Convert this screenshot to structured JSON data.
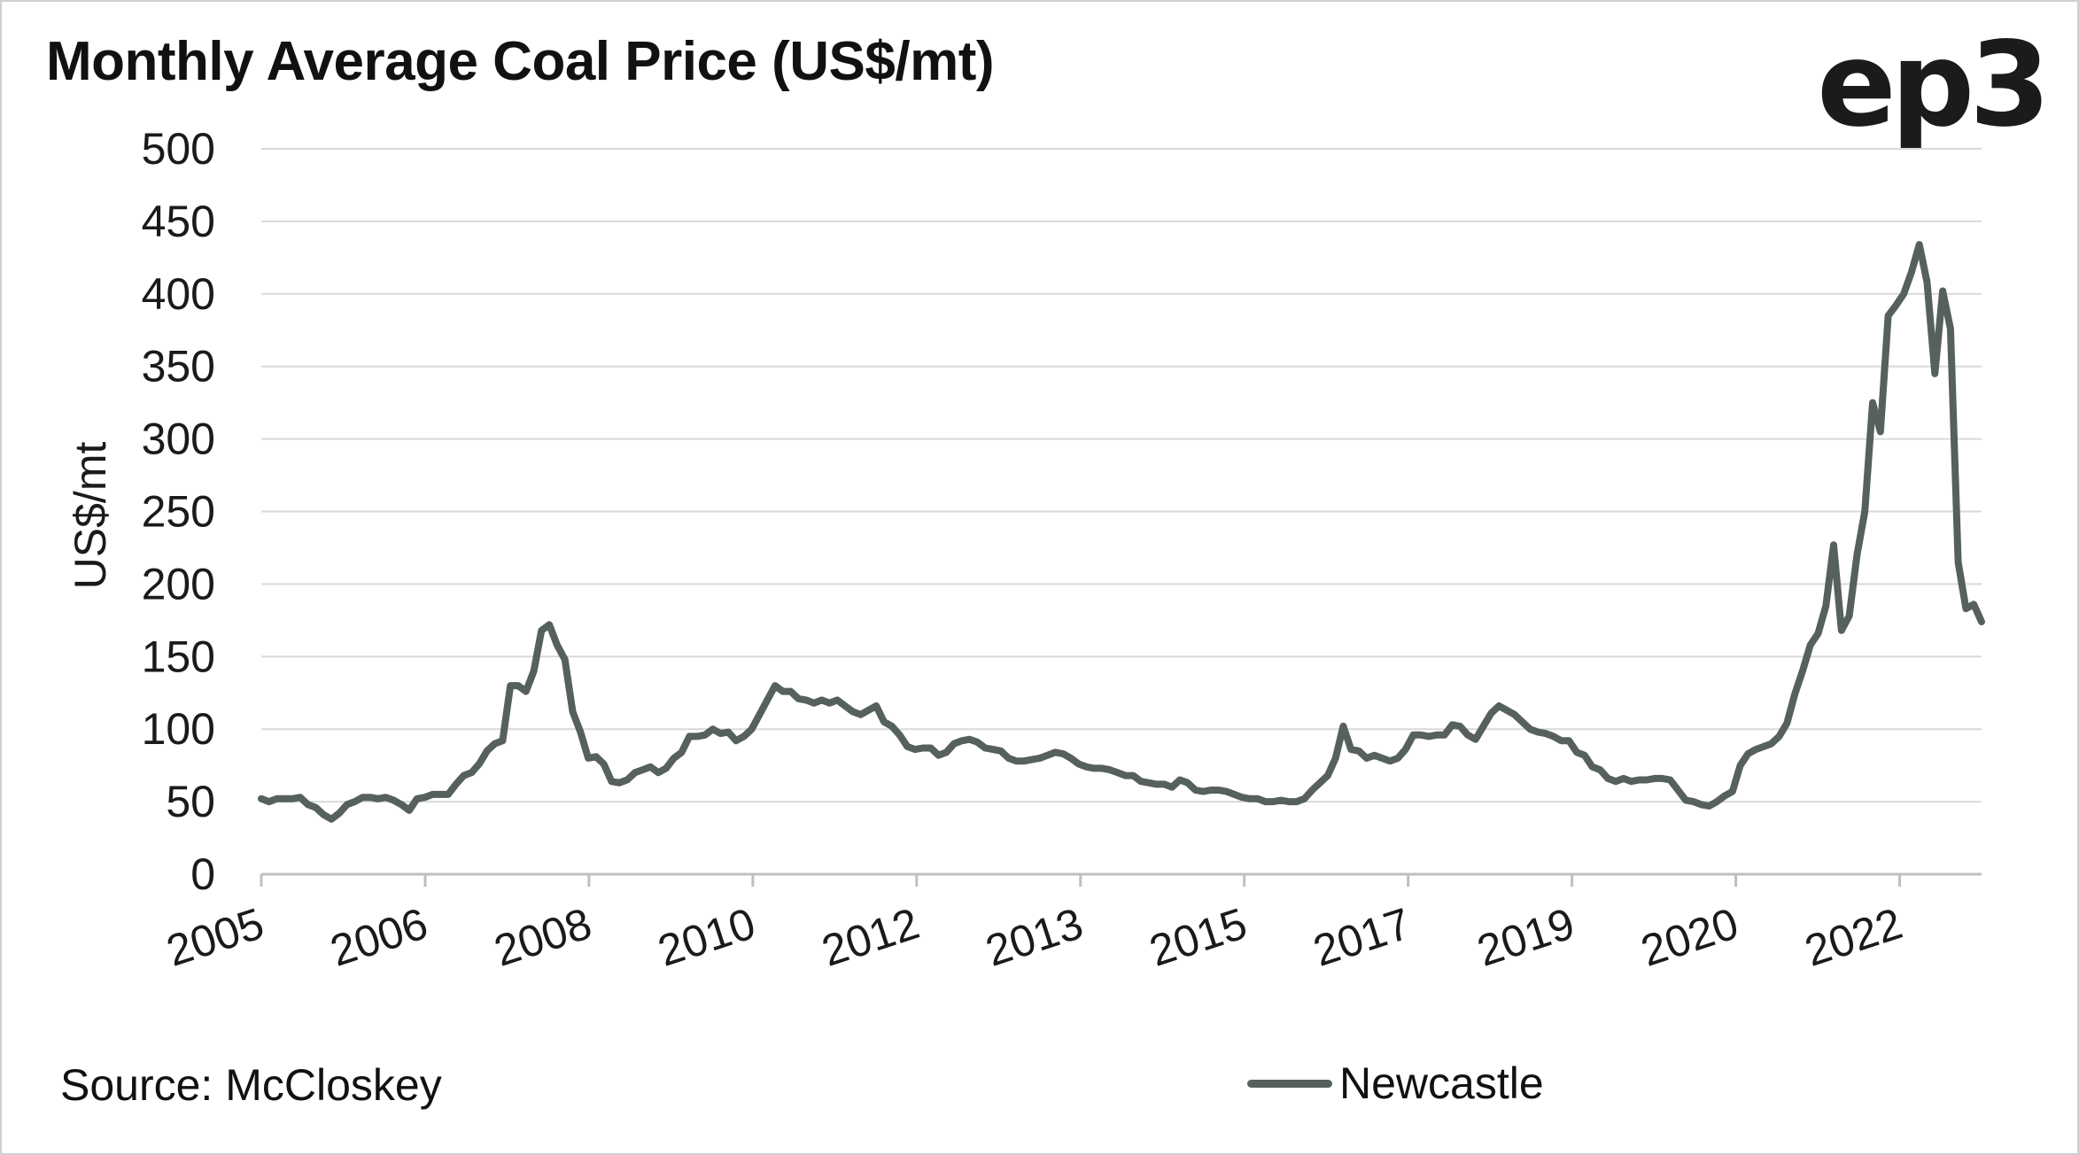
{
  "brand": {
    "logo_text": "ep3"
  },
  "source_note": "Source: McCloskey",
  "colors": {
    "series": "#56605f",
    "grid": "#d9d9d9",
    "axis": "#bfbfbf"
  },
  "chart_data": {
    "type": "line",
    "title": "Monthly Average Coal Price (US$/mt)",
    "xlabel": "",
    "ylabel": "US$/mt",
    "ylim": [
      0,
      500
    ],
    "yticks": [
      0,
      50,
      100,
      150,
      200,
      250,
      300,
      350,
      400,
      450,
      500
    ],
    "xlim": [
      0,
      210
    ],
    "x_tick_positions": [
      0,
      20,
      40,
      60,
      80,
      100,
      120,
      140,
      160,
      180,
      200
    ],
    "x_tick_labels": [
      "2005",
      "2006",
      "2008",
      "2010",
      "2012",
      "2013",
      "2015",
      "2017",
      "2019",
      "2020",
      "2022"
    ],
    "grid": true,
    "legend_position": "bottom",
    "series": [
      {
        "name": "Newcastle",
        "values": [
          52,
          50,
          52,
          52,
          52,
          53,
          48,
          46,
          41,
          38,
          42,
          48,
          50,
          53,
          53,
          52,
          53,
          51,
          48,
          44,
          52,
          53,
          55,
          55,
          55,
          62,
          68,
          70,
          76,
          85,
          90,
          92,
          130,
          130,
          126,
          140,
          168,
          172,
          158,
          148,
          112,
          98,
          80,
          81,
          76,
          64,
          63,
          65,
          70,
          72,
          74,
          70,
          73,
          80,
          84,
          95,
          95,
          96,
          100,
          97,
          98,
          92,
          95,
          100,
          110,
          120,
          130,
          126,
          126,
          121,
          120,
          118,
          120,
          118,
          120,
          116,
          112,
          110,
          113,
          116,
          105,
          102,
          96,
          88,
          86,
          87,
          87,
          82,
          84,
          90,
          92,
          93,
          91,
          87,
          86,
          85,
          80,
          78,
          78,
          79,
          80,
          82,
          84,
          83,
          80,
          76,
          74,
          73,
          73,
          72,
          70,
          68,
          68,
          64,
          63,
          62,
          62,
          60,
          65,
          63,
          58,
          57,
          58,
          58,
          57,
          55,
          53,
          52,
          52,
          50,
          50,
          51,
          50,
          50,
          52,
          58,
          63,
          68,
          80,
          102,
          86,
          85,
          80,
          82,
          80,
          78,
          80,
          86,
          96,
          96,
          95,
          96,
          96,
          103,
          102,
          96,
          93,
          102,
          111,
          116,
          113,
          110,
          105,
          100,
          98,
          97,
          95,
          92,
          92,
          84,
          82,
          74,
          72,
          66,
          64,
          66,
          64,
          65,
          65,
          66,
          66,
          65,
          58,
          51,
          50,
          48,
          47,
          50,
          54,
          57,
          75,
          83,
          86,
          88,
          90,
          95,
          104,
          124,
          140,
          158,
          166,
          185,
          227,
          168,
          178,
          220,
          250,
          325,
          305,
          385,
          392,
          400,
          415,
          434,
          408,
          345,
          402,
          376,
          215,
          183,
          186,
          174
        ]
      }
    ]
  }
}
